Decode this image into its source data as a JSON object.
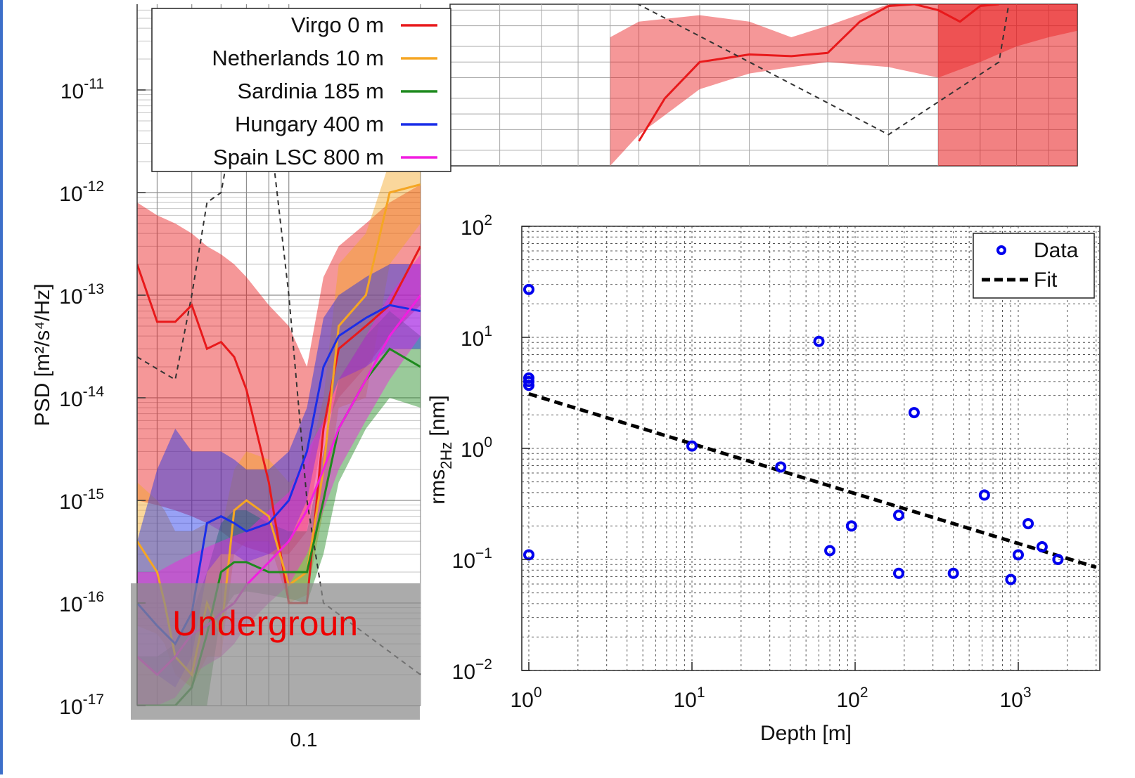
{
  "chart_data": [
    {
      "type": "area",
      "ylabel": "PSD [m²/s⁴/Hz]",
      "y_scale": "log",
      "ylim": [
        1e-17,
        1e-10
      ],
      "y_ticks": [
        {
          "exp": "-11",
          "value": 1e-11
        },
        {
          "exp": "-12",
          "value": 1e-12
        },
        {
          "exp": "-13",
          "value": 1e-13
        },
        {
          "exp": "-14",
          "value": 1e-14
        },
        {
          "exp": "-15",
          "value": 1e-15
        },
        {
          "exp": "-16",
          "value": 1e-16
        },
        {
          "exp": "-17",
          "value": 1e-17
        }
      ],
      "x_scale": "log",
      "x_ticks": [
        "0.1"
      ],
      "xlim": [
        0.045,
        0.2
      ],
      "grid": true,
      "legend_position": "top-left",
      "series": [
        {
          "name": "Virgo 0 m",
          "color": "#e8191b",
          "x": [
            0.045,
            0.05,
            0.055,
            0.06,
            0.065,
            0.07,
            0.075,
            0.08,
            0.09,
            0.1,
            0.11,
            0.12,
            0.13,
            0.15,
            0.17,
            0.2
          ],
          "y": [
            2e-13,
            5.5e-14,
            5.5e-14,
            8e-14,
            3e-14,
            3.5e-14,
            2.5e-14,
            1.2e-14,
            1.5e-15,
            1e-16,
            1e-16,
            5e-15,
            3e-14,
            5e-14,
            8e-14,
            3e-13
          ],
          "band_lo": [
            1e-15,
            9e-16,
            8e-16,
            7e-16,
            6e-16,
            5e-16,
            4e-16,
            3.5e-16,
            3e-16,
            3e-16,
            5e-16,
            5e-15,
            1e-14,
            2e-14,
            4e-14,
            8e-14
          ],
          "band_hi": [
            8e-13,
            6e-13,
            5e-13,
            4e-13,
            3e-13,
            2.5e-13,
            2e-13,
            1.5e-13,
            8e-14,
            5e-14,
            2e-14,
            1.5e-13,
            3e-13,
            5e-13,
            8e-13,
            1.2e-12
          ]
        },
        {
          "name": "Netherlands 10 m",
          "color": "#f5a623",
          "x": [
            0.045,
            0.05,
            0.052,
            0.055,
            0.06,
            0.065,
            0.07,
            0.075,
            0.08,
            0.09,
            0.1,
            0.11,
            0.12,
            0.13,
            0.15,
            0.17,
            0.2
          ],
          "y": [
            4e-16,
            2e-16,
            1e-16,
            3e-17,
            2e-17,
            1e-16,
            5e-17,
            8e-16,
            1e-15,
            7e-16,
            1.5e-16,
            2e-16,
            2e-15,
            5e-14,
            1e-13,
            1e-12,
            1.2e-12
          ],
          "band_lo": [
            6e-17,
            5e-17,
            4e-17,
            2e-17,
            1.5e-17,
            3e-17,
            3e-17,
            3e-16,
            4e-16,
            4e-16,
            1e-16,
            1.2e-16,
            8e-16,
            8e-15,
            1e-14,
            2e-13,
            5e-13
          ],
          "band_hi": [
            1.5e-15,
            1e-15,
            8e-16,
            5e-16,
            5e-16,
            6e-16,
            5e-16,
            2e-15,
            3e-15,
            2.5e-15,
            1.5e-15,
            2e-15,
            1e-14,
            2e-13,
            4e-13,
            2e-12,
            3e-12
          ]
        },
        {
          "name": "Sardinia 185 m",
          "color": "#1e8a1e",
          "x": [
            0.045,
            0.05,
            0.055,
            0.06,
            0.065,
            0.07,
            0.075,
            0.08,
            0.09,
            0.1,
            0.11,
            0.12,
            0.13,
            0.15,
            0.17,
            0.2
          ],
          "y": [
            1e-17,
            1e-17,
            1e-17,
            1.5e-17,
            5e-17,
            2e-16,
            2.5e-16,
            2.5e-16,
            2e-16,
            2e-16,
            2e-16,
            1e-15,
            5e-15,
            1.5e-14,
            3e-14,
            2e-14
          ],
          "band_lo": [
            1e-17,
            1e-17,
            1e-17,
            1e-17,
            1e-17,
            8e-17,
            1.2e-16,
            1.3e-16,
            1.2e-16,
            1.1e-16,
            1e-16,
            3e-16,
            1.5e-15,
            5e-15,
            1e-14,
            8e-15
          ],
          "band_hi": [
            3e-17,
            3e-17,
            4e-17,
            8e-17,
            2e-16,
            6e-16,
            8e-16,
            8e-16,
            6e-16,
            5e-16,
            5e-16,
            3e-15,
            1.5e-14,
            4e-14,
            7e-14,
            4e-14
          ]
        },
        {
          "name": "Hungary 400 m",
          "color": "#1a2ee8",
          "x": [
            0.045,
            0.05,
            0.055,
            0.06,
            0.065,
            0.07,
            0.075,
            0.08,
            0.09,
            0.1,
            0.11,
            0.12,
            0.13,
            0.15,
            0.17,
            0.2
          ],
          "y": [
            1e-16,
            6e-17,
            4e-17,
            8e-17,
            6e-16,
            7e-16,
            6e-16,
            5e-16,
            6e-16,
            1e-15,
            3e-15,
            2e-14,
            4e-14,
            6e-14,
            8e-14,
            7e-14
          ],
          "band_lo": [
            3e-17,
            2e-17,
            1.5e-17,
            3e-17,
            2e-16,
            3e-16,
            3e-16,
            2.5e-16,
            3e-16,
            4e-16,
            1e-15,
            6e-15,
            1.5e-14,
            2e-14,
            3e-14,
            3e-14
          ],
          "band_hi": [
            4e-16,
            2e-15,
            5e-15,
            3e-15,
            3e-15,
            3e-15,
            2.5e-15,
            2e-15,
            2e-15,
            3e-15,
            8e-15,
            6e-14,
            1e-13,
            1.5e-13,
            2e-13,
            2e-13
          ]
        },
        {
          "name": "Spain LSC 800 m",
          "color": "#f21ee0",
          "x": [
            0.045,
            0.05,
            0.055,
            0.06,
            0.065,
            0.07,
            0.075,
            0.08,
            0.09,
            0.1,
            0.11,
            0.12,
            0.13,
            0.15,
            0.17,
            0.2
          ],
          "y": [
            3e-17,
            2e-17,
            3e-17,
            5e-17,
            6e-17,
            8e-17,
            1e-16,
            1.5e-16,
            2.5e-16,
            4e-16,
            8e-16,
            2e-15,
            5e-15,
            1.5e-14,
            4e-14,
            1e-13
          ],
          "band_lo": [
            1e-17,
            1e-17,
            1.2e-17,
            2e-17,
            2.5e-17,
            3e-17,
            4e-17,
            6e-17,
            1e-16,
            1.5e-16,
            3e-16,
            8e-16,
            2e-15,
            6e-15,
            1.5e-14,
            4e-14
          ],
          "band_hi": [
            2e-16,
            2e-16,
            2.5e-16,
            3e-16,
            3.5e-16,
            4e-16,
            4.5e-16,
            5e-16,
            8e-16,
            1.2e-15,
            3e-15,
            6e-15,
            1.5e-14,
            4e-14,
            1e-13,
            2.5e-13
          ]
        }
      ],
      "dashed_reference": {
        "color": "#333333",
        "x": [
          0.045,
          0.055,
          0.06,
          0.065,
          0.07,
          0.075,
          0.08,
          0.09,
          0.1,
          0.11,
          0.12,
          0.2
        ],
        "y": [
          2.5e-14,
          1.5e-14,
          1e-13,
          8e-13,
          1e-12,
          5e-12,
          1e-11,
          5e-12,
          1e-13,
          1e-15,
          1e-16,
          2e-17
        ]
      },
      "overlay_label": "Undergroun"
    },
    {
      "type": "area",
      "note_series": "Virgo 0 m",
      "color": "#e8191b",
      "x_scale": "log",
      "y_scale": "log",
      "grid": true,
      "median": [
        [
          0.2,
          3e-13
        ],
        [
          0.22,
          2e-12
        ],
        [
          0.25,
          1e-11
        ],
        [
          0.3,
          1.4e-11
        ],
        [
          0.35,
          1.3e-11
        ],
        [
          0.4,
          1.5e-11
        ],
        [
          0.45,
          6e-11
        ],
        [
          0.5,
          1.2e-10
        ],
        [
          0.55,
          1.3e-10
        ],
        [
          0.6,
          1e-10
        ],
        [
          0.65,
          6e-11
        ],
        [
          0.7,
          1.2e-10
        ],
        [
          0.75,
          1.3e-10
        ]
      ],
      "band": [
        [
          0.18,
          1e-13,
          3e-11
        ],
        [
          0.2,
          4e-13,
          6e-11
        ],
        [
          0.25,
          3e-12,
          8e-11
        ],
        [
          0.3,
          6e-12,
          6e-11
        ],
        [
          0.35,
          8e-12,
          3e-11
        ],
        [
          0.4,
          1e-11,
          5e-11
        ],
        [
          0.5,
          8e-12,
          1.3e-10
        ],
        [
          0.6,
          5e-12,
          1.3e-10
        ],
        [
          0.7,
          1e-11,
          1.3e-10
        ],
        [
          0.8,
          2e-11,
          1.3e-10
        ],
        [
          0.9,
          3e-11,
          1.3e-10
        ],
        [
          1.0,
          4e-11,
          1.3e-10
        ]
      ],
      "dashed": [
        [
          0.1,
          1e-08
        ],
        [
          0.3,
          1e-11
        ],
        [
          0.5,
          4e-13
        ],
        [
          0.75,
          1e-11
        ],
        [
          0.8,
          1e-09
        ]
      ]
    },
    {
      "type": "scatter",
      "xlabel": "Depth [m]",
      "ylabel_main": "rms",
      "ylabel_sub": "2Hz",
      "ylabel_unit": "[nm]",
      "x_scale": "log",
      "y_scale": "log",
      "xlim": [
        0.9,
        3000
      ],
      "ylim": [
        0.01,
        100
      ],
      "x_ticks": [
        {
          "base": "10",
          "exp": "0",
          "value": 1
        },
        {
          "base": "10",
          "exp": "1",
          "value": 10
        },
        {
          "base": "10",
          "exp": "2",
          "value": 100
        },
        {
          "base": "10",
          "exp": "3",
          "value": 1000
        }
      ],
      "y_ticks": [
        {
          "base": "10",
          "exp": "2",
          "value": 100
        },
        {
          "base": "10",
          "exp": "1",
          "value": 10
        },
        {
          "base": "10",
          "exp": "0",
          "value": 1
        },
        {
          "base": "10",
          "exp": "−1",
          "value": 0.1
        },
        {
          "base": "10",
          "exp": "−2",
          "value": 0.01
        }
      ],
      "grid": true,
      "legend_position": "top-right",
      "legend": [
        {
          "label": "Data",
          "kind": "marker"
        },
        {
          "label": "Fit",
          "kind": "dashed"
        }
      ],
      "series": [
        {
          "name": "Data",
          "color": "#0000ee",
          "points": [
            [
              1,
              27
            ],
            [
              1,
              4.3
            ],
            [
              1,
              4.0
            ],
            [
              1,
              3.7
            ],
            [
              1,
              0.11
            ],
            [
              10,
              1.05
            ],
            [
              35,
              0.68
            ],
            [
              60,
              9.2
            ],
            [
              70,
              0.12
            ],
            [
              95,
              0.2
            ],
            [
              185,
              0.25
            ],
            [
              185,
              0.075
            ],
            [
              230,
              2.1
            ],
            [
              400,
              0.075
            ],
            [
              620,
              0.38
            ],
            [
              900,
              0.066
            ],
            [
              1000,
              0.11
            ],
            [
              1150,
              0.21
            ],
            [
              1400,
              0.13
            ],
            [
              1750,
              0.1
            ]
          ]
        },
        {
          "name": "Fit",
          "color": "#000000",
          "line": [
            [
              1,
              3.1
            ],
            [
              3000,
              0.085
            ]
          ]
        }
      ]
    }
  ]
}
